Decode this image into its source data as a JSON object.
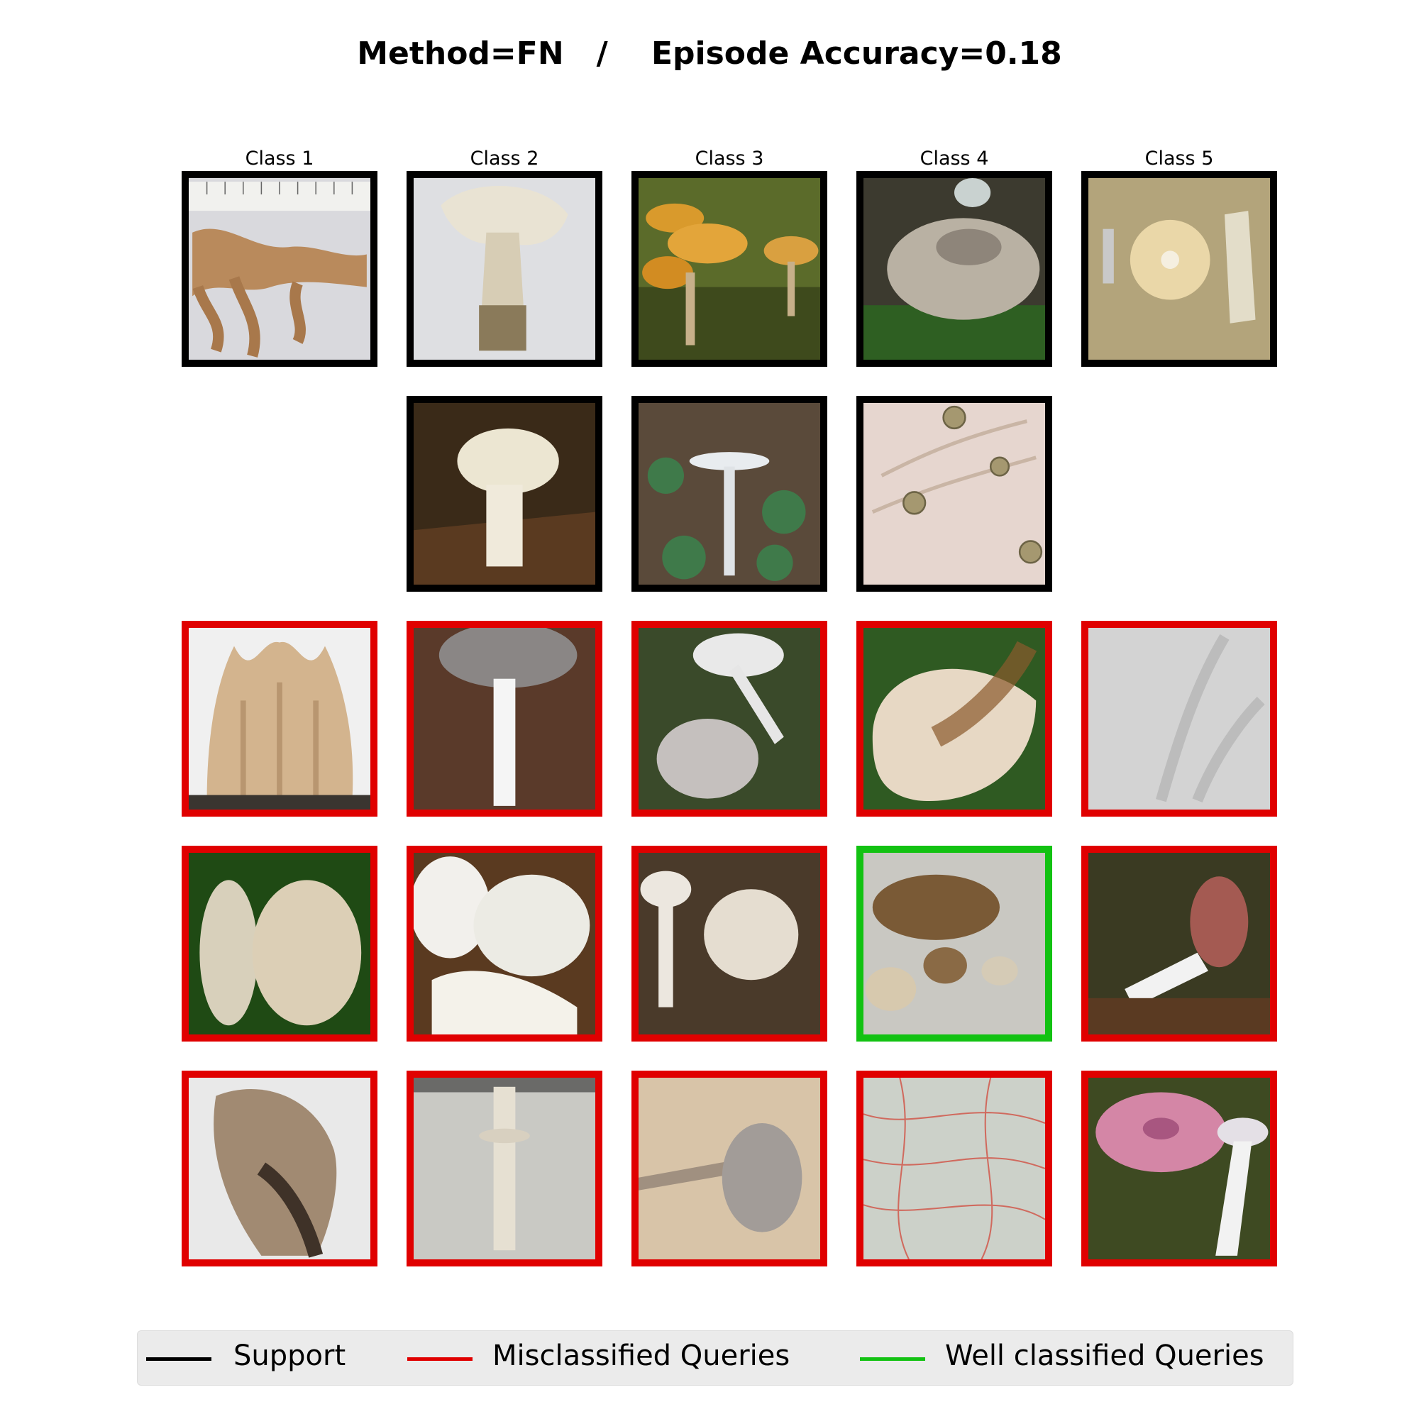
{
  "title": "Method=FN   /    Episode Accuracy=0.18",
  "classes": [
    "Class 1",
    "Class 2",
    "Class 3",
    "Class 4",
    "Class 5"
  ],
  "colors": {
    "support": "#000000",
    "misclassified": "#e00000",
    "well_classified": "#12c212"
  },
  "legend": {
    "support": "Support",
    "misclassified": "Misclassified Queries",
    "well_classified": "Well classified Queries"
  },
  "grid": [
    [
      {
        "type": "support",
        "icon": "coral-fungus-with-ruler-icon"
      },
      {
        "type": "support",
        "icon": "white-gilled-mushroom-icon"
      },
      {
        "type": "support",
        "icon": "orange-mushroom-cluster-icon"
      },
      {
        "type": "support",
        "icon": "grey-cap-mushroom-icon"
      },
      {
        "type": "support",
        "icon": "mushroom-cap-underside-icon"
      }
    ],
    [
      null,
      {
        "type": "support",
        "icon": "white-mushroom-in-leaves-icon"
      },
      {
        "type": "support",
        "icon": "tall-white-mushroom-icon"
      },
      {
        "type": "support",
        "icon": "microscope-spores-icon"
      },
      null
    ],
    [
      {
        "type": "misclassified",
        "icon": "coral-fungus-icon"
      },
      {
        "type": "misclassified",
        "icon": "grey-cap-white-stem-icon"
      },
      {
        "type": "misclassified",
        "icon": "white-mushrooms-pair-icon"
      },
      {
        "type": "misclassified",
        "icon": "brown-gilled-cap-icon"
      },
      {
        "type": "misclassified",
        "icon": "microscope-hyphae-icon"
      }
    ],
    [
      {
        "type": "misclassified",
        "icon": "cauliflower-fungus-icon"
      },
      {
        "type": "misclassified",
        "icon": "white-mushrooms-cut-icon"
      },
      {
        "type": "misclassified",
        "icon": "white-mushrooms-ground-icon"
      },
      {
        "type": "well_classified",
        "icon": "brown-mushrooms-group-icon"
      },
      {
        "type": "misclassified",
        "icon": "red-cap-mushroom-icon"
      }
    ],
    [
      {
        "type": "misclassified",
        "icon": "brown-coral-fungus-icon"
      },
      {
        "type": "misclassified",
        "icon": "mushroom-stem-ring-icon"
      },
      {
        "type": "misclassified",
        "icon": "grey-mushroom-side-icon"
      },
      {
        "type": "misclassified",
        "icon": "red-fibers-texture-icon"
      },
      {
        "type": "misclassified",
        "icon": "pink-cap-russula-icon"
      }
    ]
  ]
}
